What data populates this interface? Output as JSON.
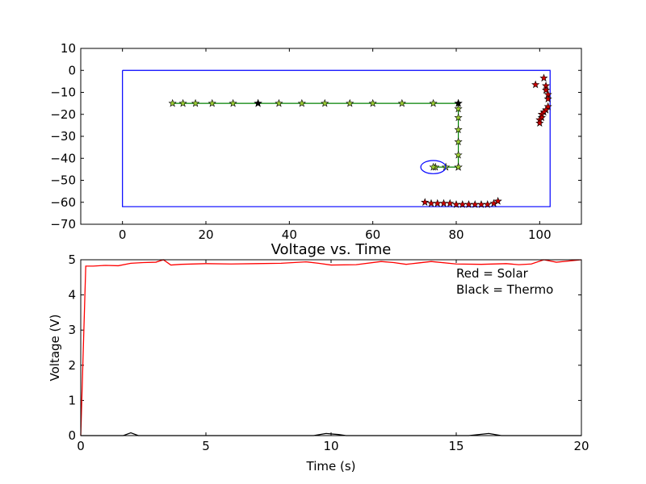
{
  "chart_data": [
    {
      "type": "scatter",
      "title": "",
      "xlabel": "",
      "ylabel": "",
      "xlim": [
        -10,
        110
      ],
      "ylim": [
        -70,
        10
      ],
      "xticks": [
        0,
        20,
        40,
        60,
        80,
        100
      ],
      "yticks": [
        -70,
        -60,
        -50,
        -40,
        -30,
        -20,
        -10,
        0,
        10
      ],
      "xtick_labels": [
        "0",
        "20",
        "40",
        "60",
        "80",
        "100"
      ],
      "ytick_labels": [
        "−70",
        "−60",
        "−50",
        "−40",
        "−30",
        "−20",
        "−10",
        "0",
        "10"
      ],
      "grid": false,
      "boundary": {
        "color": "#0000ff",
        "x": [
          0,
          102.5,
          102.5,
          0,
          0
        ],
        "y": [
          0,
          0,
          -62,
          -62,
          0
        ]
      },
      "path": {
        "line_color": "#008000",
        "marker_color": "#9acd32",
        "x": [
          12,
          14.5,
          17.5,
          21.5,
          26.5,
          32.5,
          37.5,
          43,
          48.5,
          54.5,
          60,
          67,
          74.5,
          80.5,
          80.5,
          80.5,
          80.5,
          80.5,
          80.5,
          80.5,
          80.5,
          80.5,
          77.5,
          75,
          74.5
        ],
        "y": [
          -15,
          -15,
          -15,
          -15,
          -15,
          -15,
          -15,
          -15,
          -15,
          -15,
          -15,
          -15,
          -15,
          -15,
          -17.5,
          -21.5,
          -27,
          -32.5,
          -38.5,
          -44,
          -44,
          -44,
          -44,
          -44,
          -44
        ]
      },
      "black_markers": {
        "color": "#000000",
        "x": [
          32.5,
          80.5
        ],
        "y": [
          -15,
          -15
        ]
      },
      "red_markers": {
        "color": "#cc0000",
        "x": [
          72.5,
          74,
          75.5,
          77,
          78.5,
          80,
          81.5,
          83,
          84.5,
          86,
          87.5,
          89,
          90,
          99,
          101,
          101.5,
          101.5,
          102,
          102,
          102,
          101.5,
          101,
          100.5,
          100.5,
          100,
          100
        ],
        "y": [
          -60,
          -60.5,
          -60.5,
          -60.5,
          -60.5,
          -61,
          -61,
          -61,
          -61,
          -61,
          -61,
          -60.5,
          -59.5,
          -6.5,
          -3.5,
          -7,
          -9,
          -11,
          -13,
          -16.5,
          -18,
          -19,
          -20,
          -21.5,
          -22.5,
          -24
        ]
      },
      "highlight_ellipse": {
        "color": "#0000ff",
        "cx": 74.5,
        "cy": -44,
        "rx": 3,
        "ry": 3
      }
    },
    {
      "type": "line",
      "title": "Voltage vs. Time",
      "xlabel": "Time (s)",
      "ylabel": "Voltage (V)",
      "xlim": [
        0,
        20
      ],
      "ylim": [
        0,
        5
      ],
      "xticks": [
        0,
        5,
        10,
        15,
        20
      ],
      "yticks": [
        0,
        1,
        2,
        3,
        4,
        5
      ],
      "xtick_labels": [
        "0",
        "5",
        "10",
        "15",
        "20"
      ],
      "ytick_labels": [
        "0",
        "1",
        "2",
        "3",
        "4",
        "5"
      ],
      "grid": false,
      "legend_text": [
        "Red = Solar",
        "Black = Thermo"
      ],
      "legend_placement": "top-right",
      "series": [
        {
          "color": "#ff0000",
          "x": [
            0,
            0.2,
            0.5,
            1,
            1.5,
            2,
            2.5,
            3,
            3.3,
            3.6,
            4,
            5,
            6,
            7,
            8,
            9,
            9.5,
            10,
            11,
            12,
            12.5,
            13,
            13.5,
            14,
            15,
            16,
            17,
            17.5,
            18,
            18.5,
            19,
            20
          ],
          "y": [
            0,
            4.82,
            4.82,
            4.84,
            4.83,
            4.9,
            4.92,
            4.93,
            5.0,
            4.85,
            4.87,
            4.89,
            4.88,
            4.89,
            4.9,
            4.94,
            4.9,
            4.85,
            4.86,
            4.95,
            4.92,
            4.87,
            4.91,
            4.95,
            4.88,
            4.87,
            4.89,
            4.86,
            4.88,
            5.0,
            4.93,
            5.0
          ]
        },
        {
          "color": "#000000",
          "x": [
            0,
            1.7,
            2.0,
            2.3,
            9.3,
            9.8,
            10.3,
            10.6,
            15.5,
            16.3,
            16.8,
            20
          ],
          "y": [
            0,
            0,
            0.08,
            0,
            0,
            0.06,
            0.03,
            0,
            0,
            0.06,
            0,
            0
          ]
        }
      ]
    }
  ]
}
